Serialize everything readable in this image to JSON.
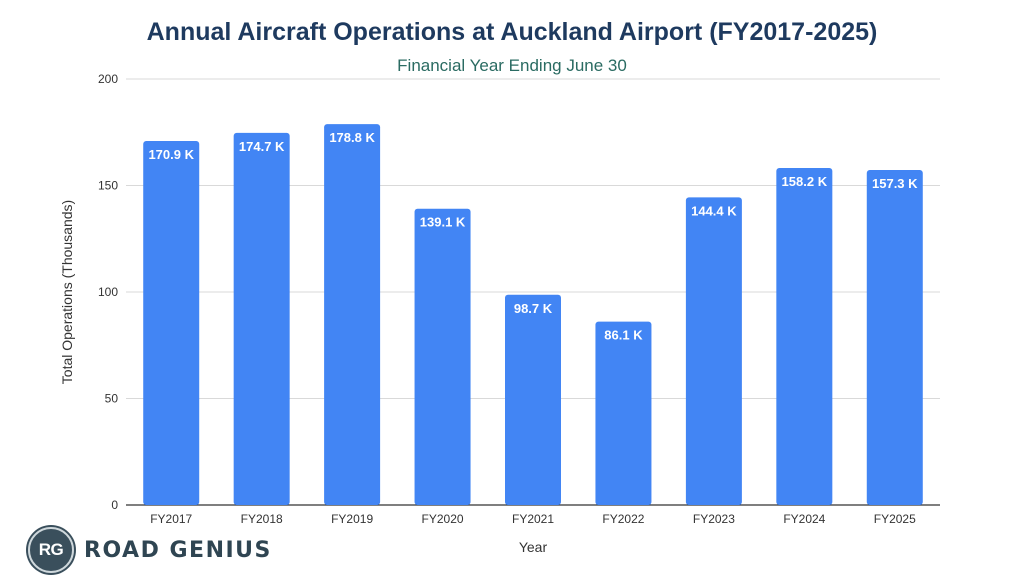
{
  "chart_data": {
    "type": "bar",
    "title": "Annual Aircraft Operations at Auckland Airport (FY2017-2025)",
    "subtitle": "Financial Year Ending June 30",
    "xlabel": "Year",
    "ylabel": "Total Operations (Thousands)",
    "ylim": [
      0,
      200
    ],
    "yticks": [
      0,
      50,
      100,
      150,
      200
    ],
    "grid": true,
    "categories": [
      "FY2017",
      "FY2018",
      "FY2019",
      "FY2020",
      "FY2021",
      "FY2022",
      "FY2023",
      "FY2024",
      "FY2025"
    ],
    "values": [
      170.9,
      174.7,
      178.8,
      139.1,
      98.7,
      86.1,
      144.4,
      158.2,
      157.3
    ],
    "data_labels": [
      "170.9 K",
      "174.7 K",
      "178.8 K",
      "139.1 K",
      "98.7 K",
      "86.1 K",
      "144.4 K",
      "158.2 K",
      "157.3 K"
    ],
    "bar_color": "#4285f4"
  },
  "logo": {
    "badge": "RG",
    "text": "ROAD GENIUS"
  }
}
